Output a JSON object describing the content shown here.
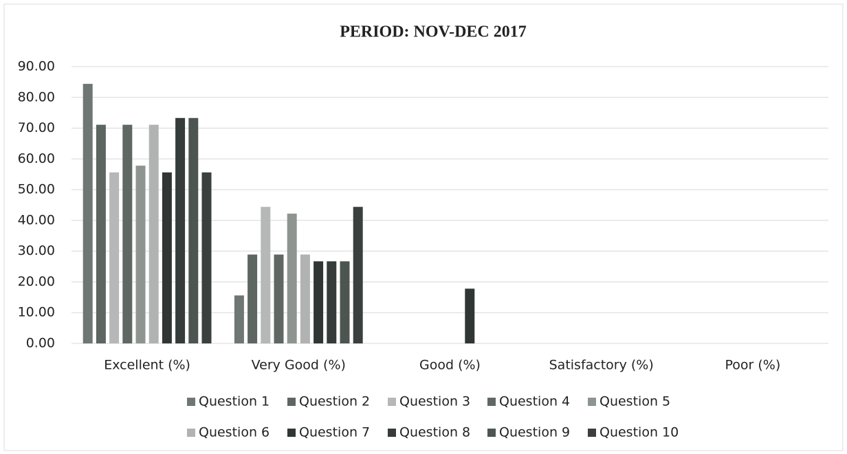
{
  "chart_data": {
    "type": "bar",
    "title": "PERIOD: NOV-DEC 2017",
    "categories": [
      "Excellent (%)",
      "Very Good (%)",
      "Good (%)",
      "Satisfactory (%)",
      "Poor (%)"
    ],
    "series": [
      {
        "name": "Question 1",
        "color": "#6e7773",
        "values": [
          84.4,
          15.6,
          0,
          0,
          0
        ]
      },
      {
        "name": "Question 2",
        "color": "#5d6661",
        "values": [
          71.1,
          28.9,
          0,
          0,
          0
        ]
      },
      {
        "name": "Question 3",
        "color": "#b5b8b6",
        "values": [
          55.6,
          44.4,
          0,
          0,
          0
        ]
      },
      {
        "name": "Question 4",
        "color": "#5f6863",
        "values": [
          71.1,
          28.9,
          0,
          0,
          0
        ]
      },
      {
        "name": "Question 5",
        "color": "#8e9590",
        "values": [
          57.8,
          42.2,
          0,
          0,
          0
        ]
      },
      {
        "name": "Question 6",
        "color": "#b0b3b1",
        "values": [
          71.1,
          28.9,
          0,
          0,
          0
        ]
      },
      {
        "name": "Question 7",
        "color": "#2f3633",
        "values": [
          55.6,
          26.7,
          17.8,
          0,
          0
        ]
      },
      {
        "name": "Question 8",
        "color": "#353c39",
        "values": [
          73.3,
          26.7,
          0,
          0,
          0
        ]
      },
      {
        "name": "Question 9",
        "color": "#4d5551",
        "values": [
          73.3,
          26.7,
          0,
          0,
          0
        ]
      },
      {
        "name": "Question 10",
        "color": "#3a403d",
        "values": [
          55.6,
          44.4,
          0,
          0,
          0
        ]
      }
    ],
    "ylim": [
      0,
      90
    ],
    "yticks": [
      {
        "value": 0,
        "label": "0.00"
      },
      {
        "value": 10,
        "label": "10.00"
      },
      {
        "value": 20,
        "label": "20.00"
      },
      {
        "value": 30,
        "label": "30.00"
      },
      {
        "value": 40,
        "label": "40.00"
      },
      {
        "value": 50,
        "label": "50.00"
      },
      {
        "value": 60,
        "label": "60.00"
      },
      {
        "value": 70,
        "label": "70.00"
      },
      {
        "value": 80,
        "label": "80.00"
      },
      {
        "value": 90,
        "label": "90.00"
      }
    ],
    "grid": true,
    "legend": "bottom"
  }
}
